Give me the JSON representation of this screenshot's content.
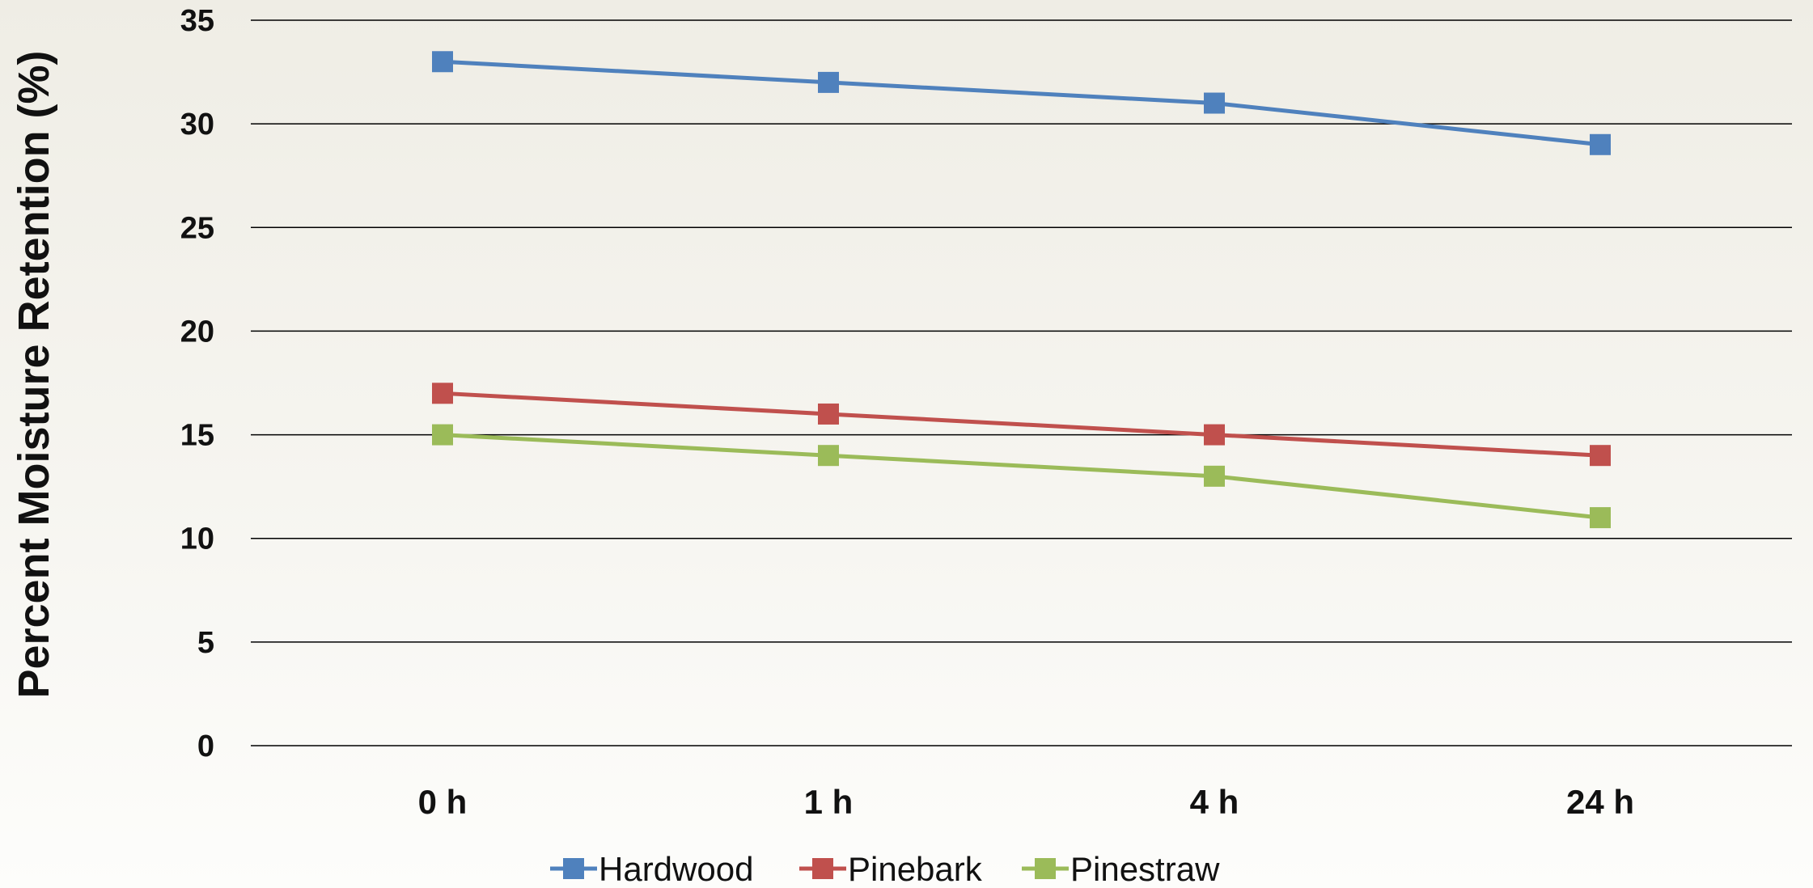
{
  "chart_data": {
    "type": "line",
    "title": "",
    "xlabel": "",
    "ylabel": "Percent Moisture Retention (%)",
    "categories": [
      "0 h",
      "1 h",
      "4 h",
      "24 h"
    ],
    "ylim": [
      0,
      35
    ],
    "yticks": [
      0,
      5,
      10,
      15,
      20,
      25,
      30,
      35
    ],
    "grid": true,
    "legend_position": "bottom",
    "marker": "square",
    "series": [
      {
        "name": "Hardwood",
        "color": "#4f81bd",
        "values": [
          33,
          32,
          31,
          29
        ]
      },
      {
        "name": "Pinebark",
        "color": "#c0504d",
        "values": [
          17,
          16,
          15,
          14
        ]
      },
      {
        "name": "Pinestraw",
        "color": "#9bbb59",
        "values": [
          15,
          14,
          13,
          11
        ]
      }
    ]
  }
}
